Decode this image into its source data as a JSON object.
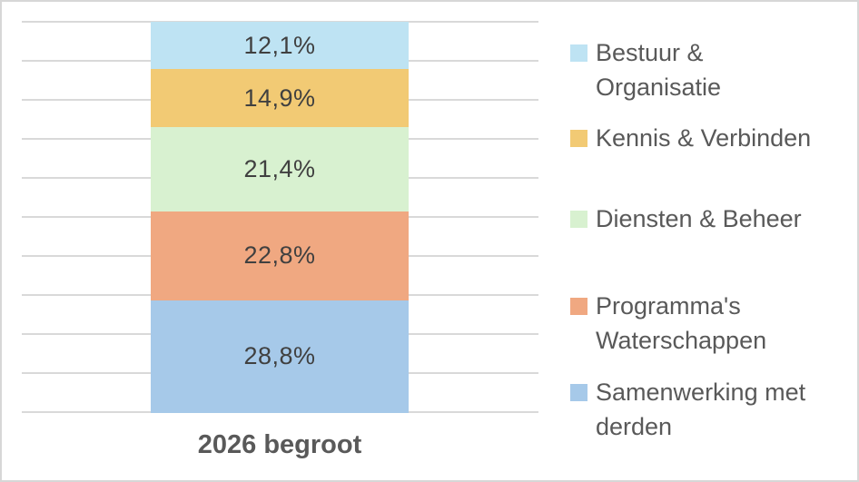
{
  "chart_data": {
    "type": "bar",
    "variant": "stacked-column-100-percent",
    "title": "",
    "xlabel": "",
    "ylabel": "",
    "categories": [
      "2026 begroot"
    ],
    "series": [
      {
        "name": "Bestuur & Organisatie",
        "values": [
          12.1
        ],
        "data_label": "12,1%",
        "color": "#BEE3F3",
        "legend_label": "Bestuur &\nOrganisatie"
      },
      {
        "name": "Kennis & Verbinden",
        "values": [
          14.9
        ],
        "data_label": "14,9%",
        "color": "#F2CA74",
        "legend_label": "Kennis & Verbinden"
      },
      {
        "name": "Diensten & Beheer",
        "values": [
          21.4
        ],
        "data_label": "21,4%",
        "color": "#D8F1D0",
        "legend_label": "Diensten & Beheer"
      },
      {
        "name": "Programma's Waterschappen",
        "values": [
          22.8
        ],
        "data_label": "22,8%",
        "color": "#F0A881",
        "legend_label": "Programma's\nWaterschappen"
      },
      {
        "name": "Samenwerking met derden",
        "values": [
          28.8
        ],
        "data_label": "28,8%",
        "color": "#A6C9E9",
        "legend_label": "Samenwerking met\nderden"
      }
    ],
    "stack_order": "first-series-on-top",
    "ylim": [
      0,
      100
    ],
    "grid": {
      "visible": true,
      "step_percent": 10,
      "color": "#D9D9D9"
    },
    "legend": {
      "position": "right"
    },
    "frame_border_color": "#D7D7D7",
    "data_label_color": "#404040",
    "legend_text_color": "#595959",
    "axis_label_color": "#595959"
  },
  "axis": {
    "category_label": "2026 begroot"
  }
}
